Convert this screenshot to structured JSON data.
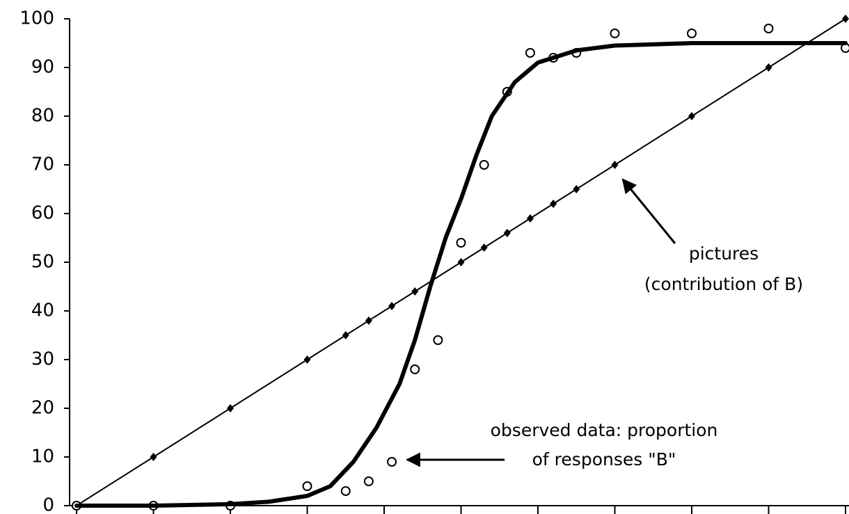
{
  "chart_data": {
    "type": "line",
    "xlim": [
      0,
      100
    ],
    "xticks": [
      0,
      10,
      20,
      30,
      40,
      50,
      60,
      70,
      80,
      90,
      100
    ],
    "ylim": [
      0,
      100
    ],
    "yticks": [
      0,
      10,
      20,
      30,
      40,
      50,
      60,
      70,
      80,
      90,
      100
    ],
    "series": [
      {
        "color": "#000000",
        "marker": "diamond",
        "line": true,
        "line_width": 2,
        "x": [
          0,
          10,
          20,
          30,
          35,
          38,
          41,
          44,
          50,
          53,
          56,
          59,
          62,
          65,
          70,
          80,
          90,
          100
        ],
        "values": [
          0,
          10,
          20,
          30,
          35,
          38,
          41,
          44,
          50,
          53,
          56,
          59,
          62,
          65,
          70,
          80,
          90,
          100
        ]
      },
      {
        "color": "#000000",
        "marker": "circle",
        "line": false,
        "x": [
          0,
          10,
          20,
          30,
          35,
          38,
          41,
          44,
          47,
          50,
          53,
          56,
          59,
          62,
          65,
          70,
          80,
          90,
          100
        ],
        "values": [
          0,
          0,
          0,
          4,
          3,
          5,
          9,
          28,
          34,
          54,
          70,
          85,
          93,
          92,
          93,
          97,
          97,
          98,
          94
        ]
      },
      {
        "color": "#000000",
        "marker": "none",
        "line": true,
        "line_width": 6,
        "x": [
          0,
          10,
          20,
          25,
          30,
          33,
          36,
          39,
          42,
          44,
          46,
          48,
          50,
          52,
          54,
          57,
          60,
          65,
          70,
          80,
          90,
          100
        ],
        "values": [
          0,
          0,
          0.3,
          0.8,
          2,
          4,
          9,
          16,
          25,
          34,
          45,
          55,
          63,
          72,
          80,
          87,
          91,
          93.5,
          94.5,
          95,
          95,
          95
        ]
      }
    ],
    "annotations": [
      {
        "lines": [
          "pictures",
          "(contribution of B)"
        ]
      },
      {
        "lines": [
          "observed data: proportion",
          "of responses \"B\""
        ]
      }
    ]
  }
}
